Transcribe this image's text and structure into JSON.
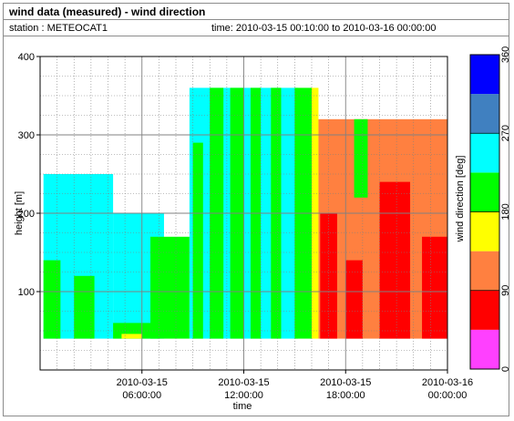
{
  "header": {
    "title": "wind data (measured) - wind direction",
    "station": "station : METEOCAT1",
    "time_range": "time: 2010-03-15 00:10:00 to 2010-03-16 00:00:00"
  },
  "chart_data": {
    "type": "heatmap",
    "xlabel": "time",
    "ylabel": "height [m]",
    "x_range": [
      "2010-03-15 00:00:00",
      "2010-03-16 00:00:00"
    ],
    "ylim": [
      0,
      400
    ],
    "x_ticks": [
      {
        "hour": 6,
        "line1": "2010-03-15",
        "line2": "06:00:00"
      },
      {
        "hour": 12,
        "line1": "2010-03-15",
        "line2": "12:00:00"
      },
      {
        "hour": 18,
        "line1": "2010-03-15",
        "line2": "18:00:00"
      },
      {
        "hour": 24,
        "line1": "2010-03-16",
        "line2": "00:00:00"
      }
    ],
    "y_ticks": [
      {
        "value": 100,
        "label": "100"
      },
      {
        "value": 200,
        "label": "200"
      },
      {
        "value": 300,
        "label": "300"
      },
      {
        "value": 400,
        "label": "400"
      }
    ],
    "grid": true,
    "colorbar": {
      "label": "wind direction [deg]",
      "range": [
        0,
        360
      ],
      "tick_labels": [
        "0",
        "90",
        "180",
        "270",
        "360"
      ],
      "bins": [
        {
          "from": 0,
          "to": 45,
          "color": "#ff40ff"
        },
        {
          "from": 45,
          "to": 90,
          "color": "#ff0000"
        },
        {
          "from": 90,
          "to": 135,
          "color": "#ff8040"
        },
        {
          "from": 135,
          "to": 180,
          "color": "#ffff00"
        },
        {
          "from": 180,
          "to": 225,
          "color": "#00ff00"
        },
        {
          "from": 225,
          "to": 270,
          "color": "#00ffff"
        },
        {
          "from": 270,
          "to": 315,
          "color": "#4080c0"
        },
        {
          "from": 315,
          "to": 360,
          "color": "#0000ff"
        }
      ]
    },
    "regions": [
      {
        "t0": 0.2,
        "t1": 4.3,
        "h0": 40,
        "h1": 250,
        "dir": 255
      },
      {
        "t0": 0.2,
        "t1": 1.2,
        "h0": 40,
        "h1": 140,
        "dir": 200
      },
      {
        "t0": 2.0,
        "t1": 3.2,
        "h0": 40,
        "h1": 120,
        "dir": 200
      },
      {
        "t0": 4.3,
        "t1": 7.3,
        "h0": 40,
        "h1": 200,
        "dir": 250
      },
      {
        "t0": 4.3,
        "t1": 7.0,
        "h0": 40,
        "h1": 60,
        "dir": 200
      },
      {
        "t0": 6.5,
        "t1": 8.8,
        "h0": 40,
        "h1": 170,
        "dir": 200
      },
      {
        "t0": 4.8,
        "t1": 6.0,
        "h0": 40,
        "h1": 46,
        "dir": 160
      },
      {
        "t0": 8.8,
        "t1": 12.0,
        "h0": 40,
        "h1": 360,
        "dir": 255
      },
      {
        "t0": 9.0,
        "t1": 9.6,
        "h0": 40,
        "h1": 290,
        "dir": 200
      },
      {
        "t0": 10.0,
        "t1": 10.8,
        "h0": 40,
        "h1": 360,
        "dir": 200
      },
      {
        "t0": 11.2,
        "t1": 12.0,
        "h0": 40,
        "h1": 360,
        "dir": 200
      },
      {
        "t0": 12.0,
        "t1": 15.2,
        "h0": 40,
        "h1": 360,
        "dir": 255
      },
      {
        "t0": 12.4,
        "t1": 13.0,
        "h0": 40,
        "h1": 360,
        "dir": 200
      },
      {
        "t0": 13.6,
        "t1": 14.2,
        "h0": 40,
        "h1": 360,
        "dir": 200
      },
      {
        "t0": 15.0,
        "t1": 16.0,
        "h0": 40,
        "h1": 360,
        "dir": 200
      },
      {
        "t0": 16.0,
        "t1": 16.4,
        "h0": 40,
        "h1": 360,
        "dir": 160
      },
      {
        "t0": 16.4,
        "t1": 24.0,
        "h0": 40,
        "h1": 320,
        "dir": 112
      },
      {
        "t0": 16.5,
        "t1": 17.5,
        "h0": 40,
        "h1": 200,
        "dir": 68
      },
      {
        "t0": 18.0,
        "t1": 19.0,
        "h0": 40,
        "h1": 140,
        "dir": 68
      },
      {
        "t0": 20.0,
        "t1": 21.8,
        "h0": 40,
        "h1": 240,
        "dir": 68
      },
      {
        "t0": 22.5,
        "t1": 24.0,
        "h0": 40,
        "h1": 170,
        "dir": 68
      },
      {
        "t0": 18.5,
        "t1": 19.3,
        "h0": 220,
        "h1": 320,
        "dir": 200
      }
    ]
  }
}
